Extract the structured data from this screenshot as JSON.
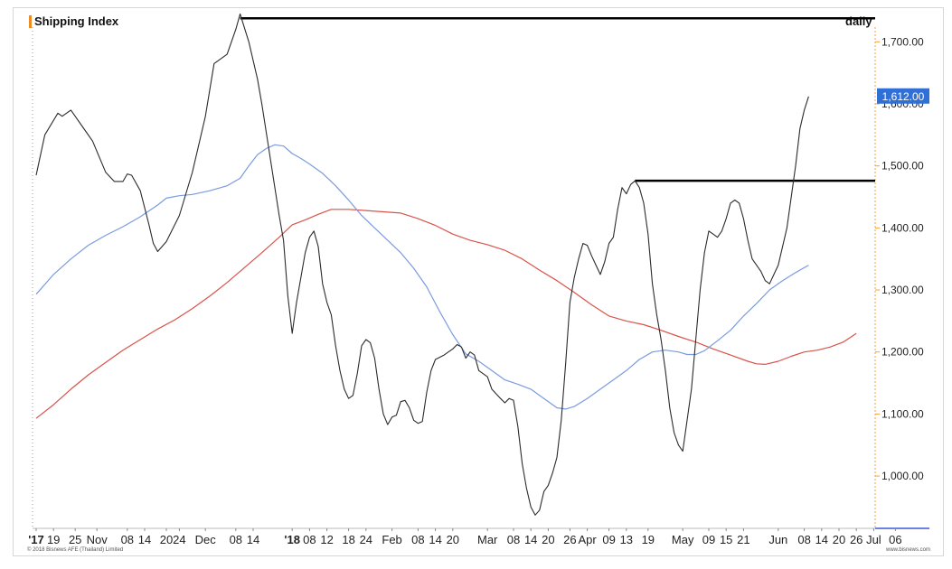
{
  "header": {
    "title": "Shipping Index",
    "frequency": "daily"
  },
  "footer": {
    "copyright": "© 2018 Bisnews AFE (Thailand) Limited",
    "website": "www.bisnews.com"
  },
  "colors": {
    "price_line": "#2b2b2b",
    "ma_blue": "#7a9be0",
    "ma_red": "#d9534a",
    "resistance_line": "#000000",
    "last_value_bg": "#2f6fd6",
    "axis_accent": "#f0a040",
    "axis_baseline": "#3a5ad6"
  },
  "chart_data": {
    "type": "line",
    "title": "Shipping Index",
    "frequency": "daily",
    "ylim": [
      920,
      1750
    ],
    "y_ticks": [
      "1,000.00",
      "1,100.00",
      "1,200.00",
      "1,300.00",
      "1,400.00",
      "1,500.00",
      "1,600.00",
      "1,700.00"
    ],
    "y_tick_values": [
      1000,
      1100,
      1200,
      1300,
      1400,
      1500,
      1600,
      1700
    ],
    "grid": false,
    "last_value_label": "1,612.00",
    "last_value": 1612,
    "x_tick_labels": [
      {
        "label": "'17",
        "i": 0,
        "year": true
      },
      {
        "label": "19",
        "i": 4
      },
      {
        "label": "25",
        "i": 9
      },
      {
        "label": "Nov",
        "i": 14
      },
      {
        "label": "08",
        "i": 21
      },
      {
        "label": "14",
        "i": 25
      },
      {
        "label": "20",
        "i": 30
      },
      {
        "label": "24",
        "i": 33
      },
      {
        "label": "Dec",
        "i": 39
      },
      {
        "label": "08",
        "i": 46
      },
      {
        "label": "14",
        "i": 50
      },
      {
        "label": "'18",
        "i": 59,
        "year": true
      },
      {
        "label": "08",
        "i": 63
      },
      {
        "label": "12",
        "i": 67
      },
      {
        "label": "18",
        "i": 72
      },
      {
        "label": "24",
        "i": 76
      },
      {
        "label": "Feb",
        "i": 82
      },
      {
        "label": "08",
        "i": 88
      },
      {
        "label": "14",
        "i": 92
      },
      {
        "label": "20",
        "i": 96
      },
      {
        "label": "Mar",
        "i": 104
      },
      {
        "label": "08",
        "i": 110
      },
      {
        "label": "14",
        "i": 114
      },
      {
        "label": "20",
        "i": 118
      },
      {
        "label": "26",
        "i": 123
      },
      {
        "label": "Apr",
        "i": 127
      },
      {
        "label": "09",
        "i": 132
      },
      {
        "label": "13",
        "i": 136
      },
      {
        "label": "19",
        "i": 141
      },
      {
        "label": "May",
        "i": 149
      },
      {
        "label": "09",
        "i": 155
      },
      {
        "label": "15",
        "i": 159
      },
      {
        "label": "21",
        "i": 163
      },
      {
        "label": "Jun",
        "i": 171
      },
      {
        "label": "08",
        "i": 177
      },
      {
        "label": "14",
        "i": 181
      },
      {
        "label": "20",
        "i": 185
      },
      {
        "label": "26",
        "i": 189
      },
      {
        "label": "Jul",
        "i": 193
      },
      {
        "label": "06",
        "i": 198
      }
    ],
    "series": [
      {
        "style": "price",
        "points": [
          [
            0,
            1485
          ],
          [
            2,
            1550
          ],
          [
            5,
            1585
          ],
          [
            6,
            1580
          ],
          [
            8,
            1590
          ],
          [
            11,
            1560
          ],
          [
            13,
            1540
          ],
          [
            16,
            1490
          ],
          [
            18,
            1475
          ],
          [
            20,
            1475
          ],
          [
            21,
            1487
          ],
          [
            22,
            1485
          ],
          [
            24,
            1460
          ],
          [
            26,
            1405
          ],
          [
            27,
            1375
          ],
          [
            28,
            1362
          ],
          [
            30,
            1378
          ],
          [
            33,
            1420
          ],
          [
            36,
            1490
          ],
          [
            39,
            1580
          ],
          [
            41,
            1665
          ],
          [
            44,
            1680
          ],
          [
            46,
            1720
          ],
          [
            47,
            1745
          ],
          [
            49,
            1700
          ],
          [
            51,
            1640
          ],
          [
            52,
            1600
          ],
          [
            54,
            1510
          ],
          [
            56,
            1420
          ],
          [
            57,
            1380
          ],
          [
            58,
            1290
          ],
          [
            59,
            1230
          ],
          [
            60,
            1280
          ],
          [
            61,
            1320
          ],
          [
            62,
            1360
          ],
          [
            63,
            1385
          ],
          [
            64,
            1395
          ],
          [
            65,
            1370
          ],
          [
            66,
            1310
          ],
          [
            67,
            1280
          ],
          [
            68,
            1260
          ],
          [
            69,
            1210
          ],
          [
            70,
            1170
          ],
          [
            71,
            1140
          ],
          [
            72,
            1125
          ],
          [
            73,
            1130
          ],
          [
            74,
            1165
          ],
          [
            75,
            1210
          ],
          [
            76,
            1220
          ],
          [
            77,
            1215
          ],
          [
            78,
            1190
          ],
          [
            79,
            1140
          ],
          [
            80,
            1100
          ],
          [
            81,
            1083
          ],
          [
            82,
            1095
          ],
          [
            83,
            1098
          ],
          [
            84,
            1120
          ],
          [
            85,
            1122
          ],
          [
            86,
            1110
          ],
          [
            87,
            1090
          ],
          [
            88,
            1085
          ],
          [
            89,
            1088
          ],
          [
            90,
            1135
          ],
          [
            91,
            1170
          ],
          [
            92,
            1188
          ],
          [
            94,
            1195
          ],
          [
            96,
            1205
          ],
          [
            97,
            1212
          ],
          [
            98,
            1208
          ],
          [
            99,
            1190
          ],
          [
            100,
            1200
          ],
          [
            101,
            1195
          ],
          [
            102,
            1170
          ],
          [
            104,
            1160
          ],
          [
            105,
            1140
          ],
          [
            107,
            1125
          ],
          [
            108,
            1118
          ],
          [
            109,
            1125
          ],
          [
            110,
            1122
          ],
          [
            111,
            1080
          ],
          [
            112,
            1020
          ],
          [
            113,
            980
          ],
          [
            114,
            950
          ],
          [
            115,
            937
          ],
          [
            116,
            945
          ],
          [
            117,
            975
          ],
          [
            118,
            985
          ],
          [
            119,
            1005
          ],
          [
            120,
            1030
          ],
          [
            121,
            1090
          ],
          [
            122,
            1180
          ],
          [
            123,
            1280
          ],
          [
            124,
            1320
          ],
          [
            125,
            1350
          ],
          [
            126,
            1375
          ],
          [
            127,
            1372
          ],
          [
            128,
            1355
          ],
          [
            129,
            1340
          ],
          [
            130,
            1325
          ],
          [
            131,
            1345
          ],
          [
            132,
            1375
          ],
          [
            133,
            1385
          ],
          [
            134,
            1430
          ],
          [
            135,
            1465
          ],
          [
            136,
            1455
          ],
          [
            137,
            1470
          ],
          [
            138,
            1476
          ],
          [
            139,
            1465
          ],
          [
            140,
            1440
          ],
          [
            141,
            1390
          ],
          [
            142,
            1310
          ],
          [
            143,
            1260
          ],
          [
            144,
            1220
          ],
          [
            145,
            1170
          ],
          [
            146,
            1110
          ],
          [
            147,
            1070
          ],
          [
            148,
            1050
          ],
          [
            149,
            1040
          ],
          [
            150,
            1090
          ],
          [
            151,
            1140
          ],
          [
            152,
            1220
          ],
          [
            153,
            1300
          ],
          [
            154,
            1360
          ],
          [
            155,
            1395
          ],
          [
            156,
            1390
          ],
          [
            157,
            1385
          ],
          [
            158,
            1395
          ],
          [
            159,
            1415
          ],
          [
            160,
            1440
          ],
          [
            161,
            1445
          ],
          [
            162,
            1440
          ],
          [
            163,
            1415
          ],
          [
            164,
            1380
          ],
          [
            165,
            1350
          ],
          [
            166,
            1340
          ],
          [
            167,
            1330
          ],
          [
            168,
            1315
          ],
          [
            169,
            1310
          ],
          [
            170,
            1325
          ],
          [
            171,
            1340
          ],
          [
            172,
            1370
          ],
          [
            173,
            1400
          ],
          [
            174,
            1450
          ],
          [
            175,
            1500
          ],
          [
            176,
            1560
          ],
          [
            177,
            1590
          ],
          [
            178,
            1612
          ]
        ]
      },
      {
        "style": "ma_blue",
        "points": [
          [
            0,
            1293
          ],
          [
            4,
            1325
          ],
          [
            8,
            1350
          ],
          [
            12,
            1372
          ],
          [
            16,
            1388
          ],
          [
            20,
            1402
          ],
          [
            24,
            1418
          ],
          [
            28,
            1437
          ],
          [
            30,
            1448
          ],
          [
            33,
            1452
          ],
          [
            36,
            1454
          ],
          [
            40,
            1460
          ],
          [
            44,
            1468
          ],
          [
            47,
            1480
          ],
          [
            49,
            1500
          ],
          [
            51,
            1518
          ],
          [
            53,
            1528
          ],
          [
            55,
            1534
          ],
          [
            57,
            1532
          ],
          [
            59,
            1520
          ],
          [
            61,
            1512
          ],
          [
            63,
            1503
          ],
          [
            66,
            1488
          ],
          [
            69,
            1468
          ],
          [
            72,
            1445
          ],
          [
            75,
            1420
          ],
          [
            78,
            1400
          ],
          [
            81,
            1380
          ],
          [
            84,
            1360
          ],
          [
            87,
            1335
          ],
          [
            90,
            1305
          ],
          [
            93,
            1265
          ],
          [
            96,
            1228
          ],
          [
            99,
            1197
          ],
          [
            102,
            1185
          ],
          [
            105,
            1170
          ],
          [
            108,
            1155
          ],
          [
            111,
            1148
          ],
          [
            114,
            1140
          ],
          [
            117,
            1125
          ],
          [
            120,
            1110
          ],
          [
            122,
            1108
          ],
          [
            124,
            1112
          ],
          [
            127,
            1125
          ],
          [
            130,
            1140
          ],
          [
            133,
            1155
          ],
          [
            136,
            1170
          ],
          [
            139,
            1188
          ],
          [
            142,
            1200
          ],
          [
            145,
            1203
          ],
          [
            148,
            1200
          ],
          [
            150,
            1196
          ],
          [
            152,
            1196
          ],
          [
            154,
            1202
          ],
          [
            157,
            1218
          ],
          [
            160,
            1235
          ],
          [
            163,
            1258
          ],
          [
            166,
            1278
          ],
          [
            169,
            1300
          ],
          [
            172,
            1315
          ],
          [
            175,
            1328
          ],
          [
            178,
            1340
          ]
        ]
      },
      {
        "style": "ma_red",
        "points": [
          [
            0,
            1093
          ],
          [
            4,
            1115
          ],
          [
            8,
            1140
          ],
          [
            12,
            1163
          ],
          [
            16,
            1183
          ],
          [
            20,
            1203
          ],
          [
            24,
            1220
          ],
          [
            28,
            1237
          ],
          [
            32,
            1252
          ],
          [
            36,
            1270
          ],
          [
            40,
            1290
          ],
          [
            44,
            1312
          ],
          [
            48,
            1336
          ],
          [
            52,
            1360
          ],
          [
            56,
            1385
          ],
          [
            59,
            1405
          ],
          [
            62,
            1413
          ],
          [
            65,
            1422
          ],
          [
            68,
            1430
          ],
          [
            72,
            1430
          ],
          [
            76,
            1428
          ],
          [
            80,
            1426
          ],
          [
            84,
            1424
          ],
          [
            88,
            1415
          ],
          [
            92,
            1404
          ],
          [
            96,
            1390
          ],
          [
            100,
            1380
          ],
          [
            104,
            1373
          ],
          [
            108,
            1364
          ],
          [
            112,
            1350
          ],
          [
            116,
            1332
          ],
          [
            120,
            1315
          ],
          [
            124,
            1296
          ],
          [
            128,
            1276
          ],
          [
            132,
            1258
          ],
          [
            136,
            1250
          ],
          [
            140,
            1244
          ],
          [
            144,
            1235
          ],
          [
            148,
            1225
          ],
          [
            152,
            1216
          ],
          [
            156,
            1205
          ],
          [
            160,
            1195
          ],
          [
            164,
            1185
          ],
          [
            166,
            1181
          ],
          [
            168,
            1180
          ],
          [
            171,
            1185
          ],
          [
            174,
            1193
          ],
          [
            177,
            1200
          ],
          [
            180,
            1203
          ],
          [
            183,
            1208
          ],
          [
            186,
            1216
          ],
          [
            189,
            1230
          ]
        ]
      }
    ],
    "reference_lines": [
      {
        "value": 1738,
        "from_i": 47,
        "to": "right"
      },
      {
        "value": 1476,
        "from_i": 138,
        "to": "right"
      }
    ]
  }
}
